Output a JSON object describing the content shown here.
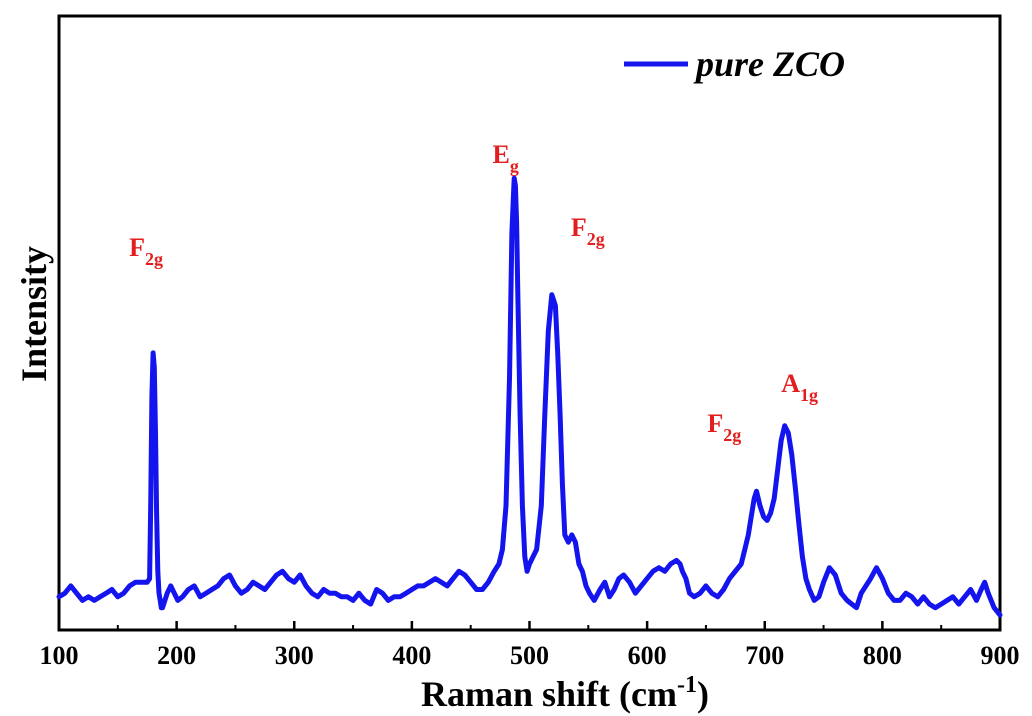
{
  "chart_data": {
    "type": "line",
    "xlabel": {
      "main": "Raman shift (cm",
      "sup": "-1",
      "tail": ")"
    },
    "ylabel": "Intensity",
    "xlim": [
      100,
      900
    ],
    "xticks": [
      100,
      200,
      300,
      400,
      500,
      600,
      700,
      800,
      900
    ],
    "y_ticks_shown": false,
    "grid": false,
    "legend_position": "top-right",
    "series": [
      {
        "name": "pure ZCO",
        "color": "#1414ee",
        "x": [
          100,
          105,
          110,
          115,
          120,
          125,
          130,
          135,
          140,
          145,
          150,
          155,
          160,
          165,
          170,
          175,
          177,
          178,
          179,
          180,
          181,
          182,
          183,
          184,
          185,
          186,
          187,
          188,
          189,
          190,
          192,
          195,
          198,
          201,
          205,
          210,
          215,
          220,
          225,
          230,
          235,
          240,
          245,
          250,
          255,
          260,
          265,
          270,
          275,
          280,
          285,
          290,
          295,
          300,
          305,
          310,
          315,
          320,
          325,
          330,
          335,
          340,
          345,
          350,
          355,
          360,
          365,
          370,
          375,
          380,
          385,
          390,
          395,
          400,
          405,
          410,
          415,
          420,
          425,
          430,
          435,
          440,
          445,
          450,
          455,
          460,
          465,
          470,
          474,
          477,
          480,
          483,
          485,
          487,
          488,
          489,
          490,
          492,
          494,
          496,
          498,
          500,
          503,
          506,
          510,
          513,
          516,
          519,
          522,
          524,
          526,
          528,
          530,
          533,
          536,
          539,
          542,
          545,
          548,
          551,
          555,
          560,
          564,
          568,
          572,
          576,
          580,
          585,
          590,
          595,
          600,
          605,
          610,
          615,
          620,
          625,
          628,
          630,
          633,
          636,
          640,
          645,
          650,
          655,
          660,
          665,
          670,
          675,
          680,
          683,
          686,
          689,
          691,
          693,
          696,
          699,
          702,
          705,
          708,
          711,
          714,
          717,
          720,
          723,
          726,
          729,
          732,
          735,
          738,
          742,
          746,
          750,
          755,
          760,
          765,
          770,
          774,
          778,
          782,
          786,
          790,
          795,
          800,
          805,
          810,
          815,
          820,
          825,
          830,
          835,
          840,
          845,
          850,
          855,
          860,
          865,
          870,
          875,
          880,
          884,
          887,
          890,
          895,
          900
        ],
        "y": [
          5,
          6,
          8,
          6,
          4,
          5,
          4,
          5,
          6,
          7,
          5,
          6,
          8,
          9,
          9,
          9,
          10,
          30,
          60,
          72,
          68,
          50,
          28,
          12,
          6,
          4,
          2,
          2,
          3,
          4,
          6,
          8,
          6,
          4,
          5,
          7,
          8,
          5,
          6,
          7,
          8,
          10,
          11,
          8,
          6,
          7,
          9,
          8,
          7,
          9,
          11,
          12,
          10,
          9,
          11,
          8,
          6,
          5,
          7,
          6,
          6,
          5,
          5,
          4,
          6,
          4,
          3,
          7,
          6,
          4,
          5,
          5,
          6,
          7,
          8,
          8,
          9,
          10,
          9,
          8,
          10,
          12,
          11,
          9,
          7,
          7,
          9,
          12,
          14,
          18,
          30,
          65,
          105,
          120,
          118,
          108,
          90,
          55,
          30,
          16,
          12,
          14,
          16,
          18,
          30,
          55,
          78,
          88,
          85,
          72,
          55,
          36,
          22,
          20,
          22,
          20,
          14,
          12,
          8,
          6,
          4,
          7,
          9,
          5,
          7,
          10,
          11,
          9,
          6,
          8,
          10,
          12,
          13,
          12,
          14,
          15,
          14,
          12,
          10,
          6,
          5,
          6,
          8,
          6,
          5,
          7,
          10,
          12,
          14,
          18,
          22,
          28,
          32,
          34,
          30,
          27,
          26,
          28,
          32,
          40,
          48,
          52,
          50,
          44,
          35,
          25,
          16,
          10,
          7,
          4,
          5,
          9,
          13,
          11,
          6,
          4,
          3,
          2,
          6,
          8,
          10,
          13,
          10,
          6,
          4,
          4,
          6,
          5,
          3,
          5,
          3,
          2,
          3,
          4,
          5,
          3,
          5,
          7,
          4,
          7,
          9,
          6,
          2,
          0
        ]
      }
    ],
    "annotations": [
      {
        "base": "F",
        "sub": "2g",
        "x": 180
      },
      {
        "base": "E",
        "sub": "g",
        "x": 489
      },
      {
        "base": "F",
        "sub": "2g",
        "x": 525
      },
      {
        "base": "F",
        "sub": "2g",
        "x": 692
      },
      {
        "base": "A",
        "sub": "1g",
        "x": 714
      }
    ]
  }
}
